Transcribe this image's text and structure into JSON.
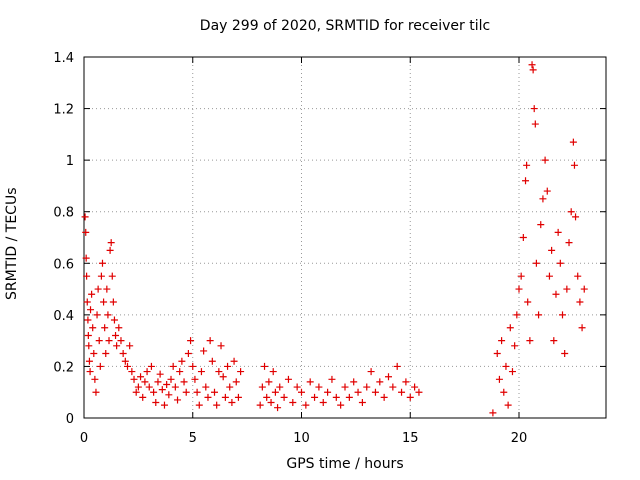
{
  "chart_data": {
    "type": "scatter",
    "title": "Day 299 of 2020, SRMTID for receiver tilc",
    "xlabel": "GPS time / hours",
    "ylabel": "SRMTID / TECUs",
    "xlim": [
      0,
      24
    ],
    "ylim": [
      0,
      1.4
    ],
    "xticks": [
      0,
      5,
      10,
      15,
      20
    ],
    "yticks": [
      0,
      0.2,
      0.4,
      0.6,
      0.8,
      1,
      1.2,
      1.4
    ],
    "ytick_labels": [
      "0",
      "0.2",
      "0.4",
      "0.6",
      "0.8",
      "1",
      "1.2",
      "1.4"
    ],
    "grid": true,
    "marker": "+",
    "color": "#e00000",
    "series": [
      {
        "name": "SRMTID",
        "points": [
          [
            0.05,
            0.78
          ],
          [
            0.08,
            0.72
          ],
          [
            0.1,
            0.62
          ],
          [
            0.12,
            0.55
          ],
          [
            0.15,
            0.45
          ],
          [
            0.18,
            0.38
          ],
          [
            0.2,
            0.32
          ],
          [
            0.22,
            0.28
          ],
          [
            0.25,
            0.22
          ],
          [
            0.28,
            0.18
          ],
          [
            0.3,
            0.42
          ],
          [
            0.35,
            0.48
          ],
          [
            0.4,
            0.35
          ],
          [
            0.45,
            0.25
          ],
          [
            0.5,
            0.15
          ],
          [
            0.55,
            0.1
          ],
          [
            0.6,
            0.4
          ],
          [
            0.65,
            0.5
          ],
          [
            0.7,
            0.3
          ],
          [
            0.75,
            0.2
          ],
          [
            0.8,
            0.55
          ],
          [
            0.85,
            0.6
          ],
          [
            0.9,
            0.45
          ],
          [
            0.95,
            0.35
          ],
          [
            1.0,
            0.25
          ],
          [
            1.05,
            0.5
          ],
          [
            1.1,
            0.4
          ],
          [
            1.15,
            0.3
          ],
          [
            1.2,
            0.65
          ],
          [
            1.25,
            0.68
          ],
          [
            1.3,
            0.55
          ],
          [
            1.35,
            0.45
          ],
          [
            1.4,
            0.38
          ],
          [
            1.45,
            0.32
          ],
          [
            1.5,
            0.28
          ],
          [
            1.6,
            0.35
          ],
          [
            1.7,
            0.3
          ],
          [
            1.8,
            0.25
          ],
          [
            1.9,
            0.22
          ],
          [
            2.0,
            0.2
          ],
          [
            2.1,
            0.28
          ],
          [
            2.2,
            0.18
          ],
          [
            2.3,
            0.15
          ],
          [
            2.4,
            0.1
          ],
          [
            2.5,
            0.12
          ],
          [
            2.6,
            0.16
          ],
          [
            2.7,
            0.08
          ],
          [
            2.8,
            0.14
          ],
          [
            2.9,
            0.18
          ],
          [
            3.0,
            0.12
          ],
          [
            3.1,
            0.2
          ],
          [
            3.2,
            0.1
          ],
          [
            3.3,
            0.06
          ],
          [
            3.4,
            0.14
          ],
          [
            3.5,
            0.17
          ],
          [
            3.6,
            0.11
          ],
          [
            3.7,
            0.05
          ],
          [
            3.8,
            0.13
          ],
          [
            3.9,
            0.09
          ],
          [
            4.0,
            0.15
          ],
          [
            4.1,
            0.2
          ],
          [
            4.2,
            0.12
          ],
          [
            4.3,
            0.07
          ],
          [
            4.4,
            0.18
          ],
          [
            4.5,
            0.22
          ],
          [
            4.6,
            0.14
          ],
          [
            4.7,
            0.1
          ],
          [
            4.8,
            0.25
          ],
          [
            4.9,
            0.3
          ],
          [
            5.0,
            0.2
          ],
          [
            5.1,
            0.15
          ],
          [
            5.2,
            0.1
          ],
          [
            5.3,
            0.05
          ],
          [
            5.4,
            0.18
          ],
          [
            5.5,
            0.26
          ],
          [
            5.6,
            0.12
          ],
          [
            5.7,
            0.08
          ],
          [
            5.8,
            0.3
          ],
          [
            5.9,
            0.22
          ],
          [
            6.0,
            0.1
          ],
          [
            6.1,
            0.05
          ],
          [
            6.2,
            0.18
          ],
          [
            6.3,
            0.28
          ],
          [
            6.4,
            0.16
          ],
          [
            6.5,
            0.08
          ],
          [
            6.6,
            0.2
          ],
          [
            6.7,
            0.12
          ],
          [
            6.8,
            0.06
          ],
          [
            6.9,
            0.22
          ],
          [
            7.0,
            0.14
          ],
          [
            7.1,
            0.08
          ],
          [
            7.2,
            0.18
          ],
          [
            8.1,
            0.05
          ],
          [
            8.2,
            0.12
          ],
          [
            8.3,
            0.2
          ],
          [
            8.4,
            0.08
          ],
          [
            8.5,
            0.14
          ],
          [
            8.6,
            0.06
          ],
          [
            8.7,
            0.18
          ],
          [
            8.8,
            0.1
          ],
          [
            8.9,
            0.04
          ],
          [
            9.0,
            0.12
          ],
          [
            9.2,
            0.08
          ],
          [
            9.4,
            0.15
          ],
          [
            9.6,
            0.06
          ],
          [
            9.8,
            0.12
          ],
          [
            10.0,
            0.1
          ],
          [
            10.2,
            0.05
          ],
          [
            10.4,
            0.14
          ],
          [
            10.6,
            0.08
          ],
          [
            10.8,
            0.12
          ],
          [
            11.0,
            0.06
          ],
          [
            11.2,
            0.1
          ],
          [
            11.4,
            0.15
          ],
          [
            11.6,
            0.08
          ],
          [
            11.8,
            0.05
          ],
          [
            12.0,
            0.12
          ],
          [
            12.2,
            0.08
          ],
          [
            12.4,
            0.14
          ],
          [
            12.6,
            0.1
          ],
          [
            12.8,
            0.06
          ],
          [
            13.0,
            0.12
          ],
          [
            13.2,
            0.18
          ],
          [
            13.4,
            0.1
          ],
          [
            13.6,
            0.14
          ],
          [
            13.8,
            0.08
          ],
          [
            14.0,
            0.16
          ],
          [
            14.2,
            0.12
          ],
          [
            14.4,
            0.2
          ],
          [
            14.6,
            0.1
          ],
          [
            14.8,
            0.14
          ],
          [
            15.0,
            0.08
          ],
          [
            15.2,
            0.12
          ],
          [
            15.4,
            0.1
          ],
          [
            18.8,
            0.02
          ],
          [
            19.0,
            0.25
          ],
          [
            19.1,
            0.15
          ],
          [
            19.2,
            0.3
          ],
          [
            19.3,
            0.1
          ],
          [
            19.4,
            0.2
          ],
          [
            19.5,
            0.05
          ],
          [
            19.6,
            0.35
          ],
          [
            19.7,
            0.18
          ],
          [
            19.8,
            0.28
          ],
          [
            19.9,
            0.4
          ],
          [
            20.0,
            0.5
          ],
          [
            20.1,
            0.55
          ],
          [
            20.2,
            0.7
          ],
          [
            20.3,
            0.92
          ],
          [
            20.35,
            0.98
          ],
          [
            20.4,
            0.45
          ],
          [
            20.5,
            0.3
          ],
          [
            20.6,
            1.37
          ],
          [
            20.65,
            1.35
          ],
          [
            20.7,
            1.2
          ],
          [
            20.75,
            1.14
          ],
          [
            20.8,
            0.6
          ],
          [
            20.9,
            0.4
          ],
          [
            21.0,
            0.75
          ],
          [
            21.1,
            0.85
          ],
          [
            21.2,
            1.0
          ],
          [
            21.3,
            0.88
          ],
          [
            21.4,
            0.55
          ],
          [
            21.5,
            0.65
          ],
          [
            21.6,
            0.3
          ],
          [
            21.7,
            0.48
          ],
          [
            21.8,
            0.72
          ],
          [
            21.9,
            0.6
          ],
          [
            22.0,
            0.4
          ],
          [
            22.1,
            0.25
          ],
          [
            22.2,
            0.5
          ],
          [
            22.3,
            0.68
          ],
          [
            22.4,
            0.8
          ],
          [
            22.5,
            1.07
          ],
          [
            22.55,
            0.98
          ],
          [
            22.6,
            0.78
          ],
          [
            22.7,
            0.55
          ],
          [
            22.8,
            0.45
          ],
          [
            22.9,
            0.35
          ],
          [
            23.0,
            0.5
          ]
        ]
      }
    ]
  }
}
